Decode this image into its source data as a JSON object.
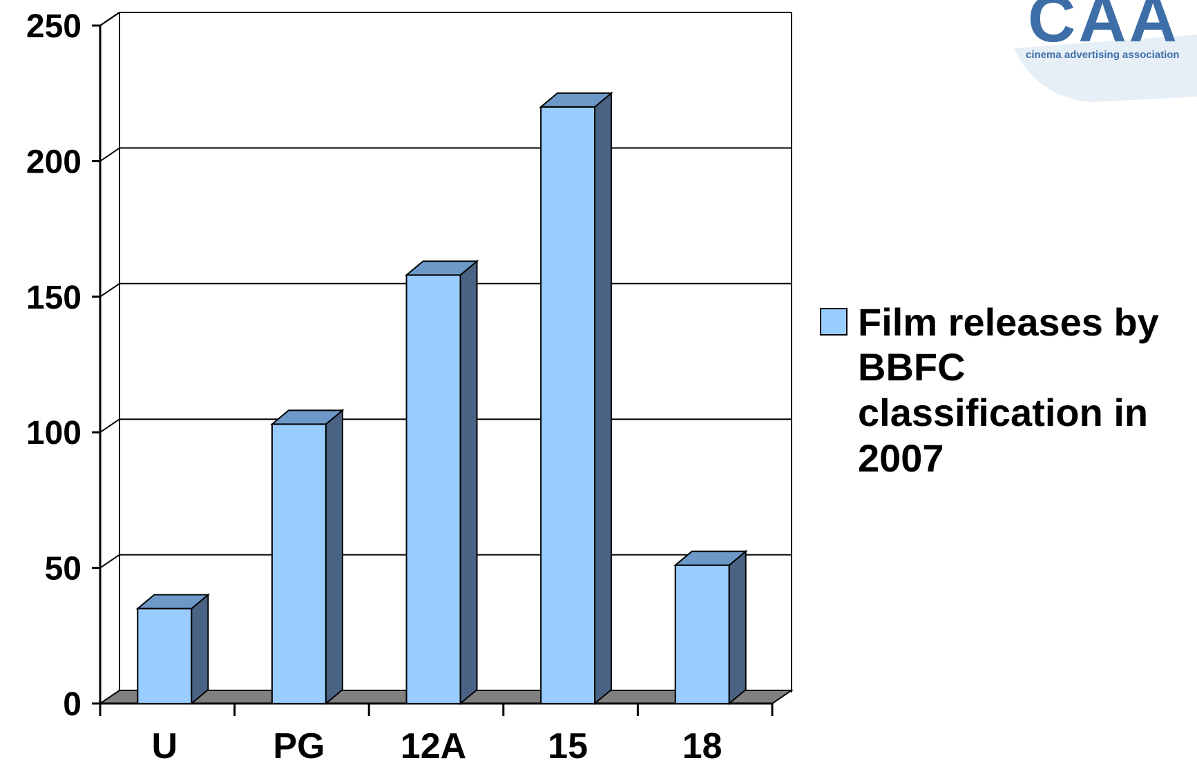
{
  "chart_data": {
    "type": "bar",
    "categories": [
      "U",
      "PG",
      "12A",
      "15",
      "18"
    ],
    "series": [
      {
        "name": "Film releases by BBFC classification in 2007",
        "values": [
          35,
          103,
          158,
          220,
          51
        ]
      }
    ],
    "y_ticks": [
      "0",
      "50",
      "100",
      "150",
      "200",
      "250"
    ],
    "ylim": [
      0,
      250
    ],
    "grid": true,
    "legend_position": "right",
    "style": "3d-column",
    "colors": {
      "bar_front": "#99CCFF",
      "bar_top": "#6C99C8",
      "bar_side": "#4A6384",
      "floor": "#808080",
      "grid": "#000000"
    }
  },
  "legend": {
    "lines": [
      "Film releases by",
      "BBFC",
      "classification in",
      "2007"
    ]
  },
  "logo": {
    "text": "CAA",
    "tagline": "cinema advertising association"
  }
}
